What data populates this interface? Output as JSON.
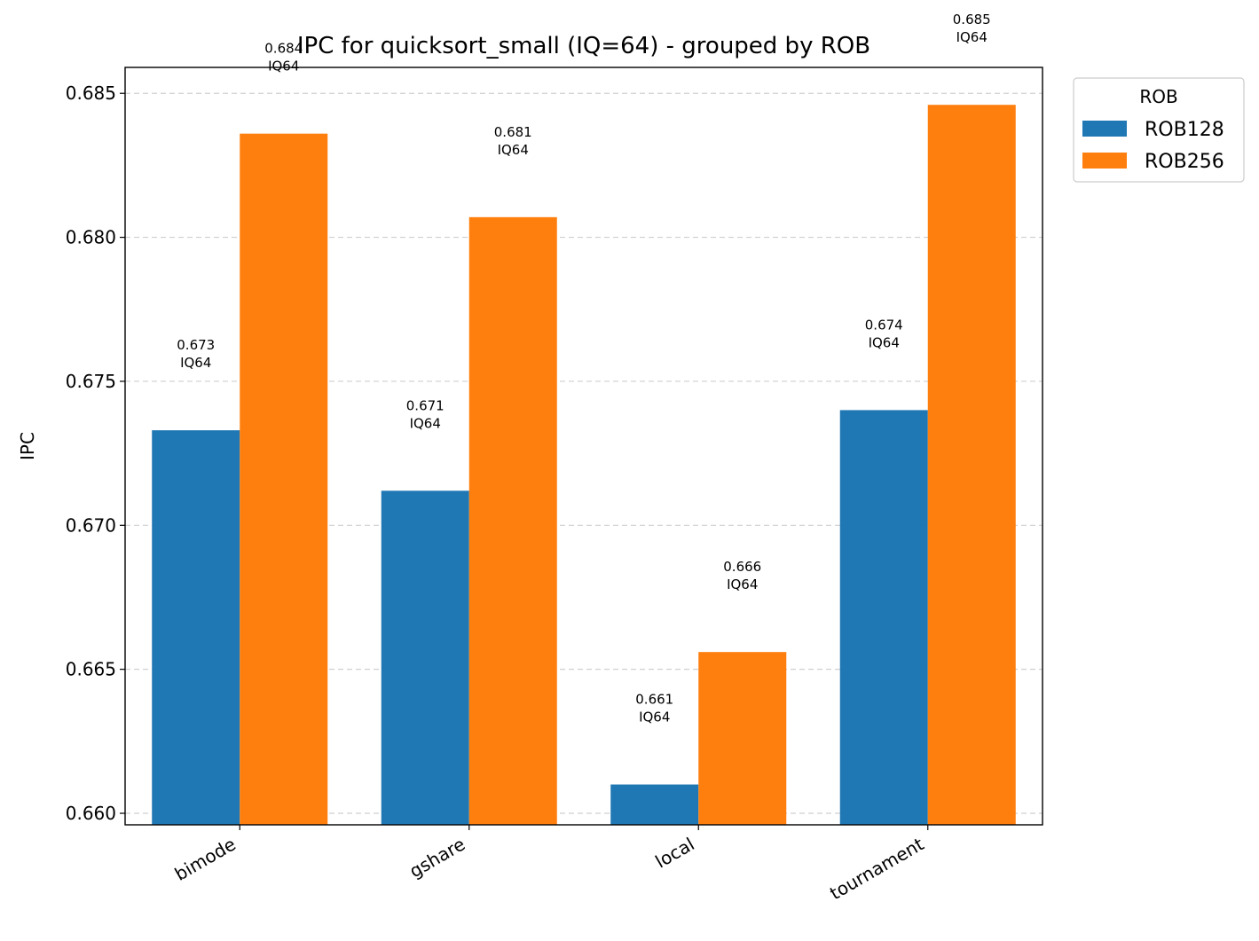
{
  "chart_data": {
    "type": "bar",
    "title": "IPC for quicksort_small (IQ=64) - grouped by ROB",
    "xlabel": "",
    "ylabel": "IPC",
    "categories": [
      "bimode",
      "gshare",
      "local",
      "tournament"
    ],
    "series": [
      {
        "name": "ROB128",
        "color": "#1f77b4",
        "values": [
          0.6733,
          0.6712,
          0.661,
          0.674
        ],
        "labels": [
          "0.673\nIQ64",
          "0.671\nIQ64",
          "0.661\nIQ64",
          "0.674\nIQ64"
        ]
      },
      {
        "name": "ROB256",
        "color": "#ff7f0e",
        "values": [
          0.6836,
          0.6807,
          0.6656,
          0.6846
        ],
        "labels": [
          "0.684\nIQ64",
          "0.681\nIQ64",
          "0.666\nIQ64",
          "0.685\nIQ64"
        ]
      }
    ],
    "ylim": [
      0.6596,
      0.6859
    ],
    "yticks": [
      0.66,
      0.665,
      0.67,
      0.675,
      0.68,
      0.685
    ],
    "ytick_labels": [
      "0.660",
      "0.665",
      "0.670",
      "0.675",
      "0.680",
      "0.685"
    ],
    "grid": "y-dashed",
    "legend": {
      "title": "ROB",
      "placement": "outside-top-right"
    },
    "x_tick_rotation": -30
  }
}
